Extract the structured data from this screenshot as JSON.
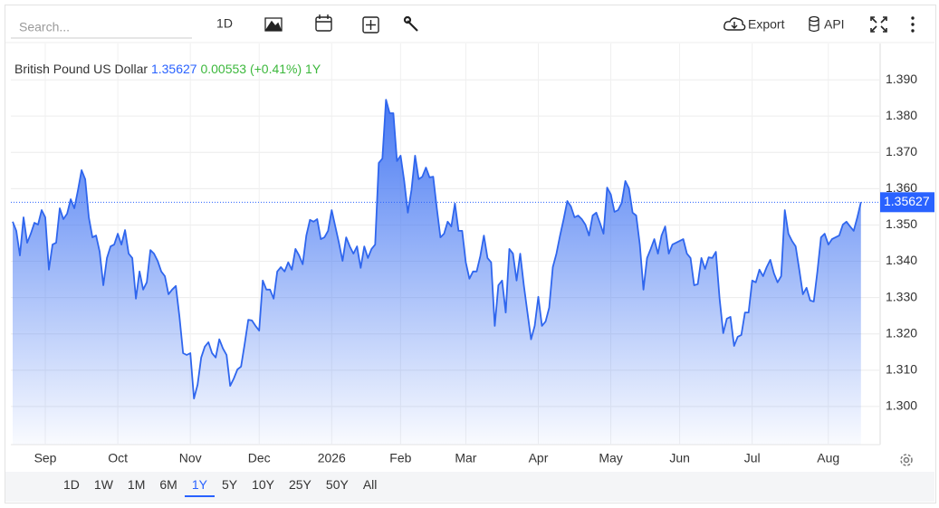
{
  "toolbar": {
    "search_placeholder": "Search...",
    "interval": "1D",
    "export": "Export",
    "api": "API"
  },
  "chart_data": {
    "type": "area",
    "title": "British Pound US Dollar",
    "last_price": 1.35627,
    "change": 0.00553,
    "change_percent": {
      "value": 0.41,
      "label": "(+0.41%)"
    },
    "period": "1Y",
    "price_color": "#2962ff",
    "change_color": "#3cb83c",
    "color": "#2f66ee",
    "values": [
      1.3509,
      1.3484,
      1.3416,
      1.3521,
      1.3451,
      1.3476,
      1.3506,
      1.3501,
      1.3541,
      1.3521,
      1.3377,
      1.3446,
      1.3451,
      1.3546,
      1.3516,
      1.3531,
      1.3571,
      1.3546,
      1.3596,
      1.3651,
      1.3626,
      1.3521,
      1.3466,
      1.3471,
      1.3426,
      1.3334,
      1.3409,
      1.3441,
      1.3446,
      1.3476,
      1.3446,
      1.3486,
      1.3421,
      1.3409,
      1.3297,
      1.3372,
      1.3322,
      1.3342,
      1.3431,
      1.3421,
      1.3401,
      1.3372,
      1.3359,
      1.3309,
      1.3322,
      1.3332,
      1.3247,
      1.3147,
      1.3142,
      1.3147,
      1.3022,
      1.306,
      1.3135,
      1.3165,
      1.3177,
      1.3147,
      1.3135,
      1.3185,
      1.316,
      1.3142,
      1.3057,
      1.3077,
      1.3102,
      1.311,
      1.3172,
      1.3239,
      1.3237,
      1.3222,
      1.3209,
      1.3347,
      1.3322,
      1.3322,
      1.3297,
      1.3372,
      1.3384,
      1.3372,
      1.3397,
      1.3377,
      1.3434,
      1.3416,
      1.3392,
      1.3471,
      1.3514,
      1.3509,
      1.3516,
      1.3461,
      1.3466,
      1.3484,
      1.3541,
      1.3496,
      1.3451,
      1.3401,
      1.3466,
      1.3441,
      1.3421,
      1.3441,
      1.3382,
      1.3441,
      1.3409,
      1.3434,
      1.3446,
      1.3671,
      1.3683,
      1.3845,
      1.3808,
      1.3808,
      1.3676,
      1.3691,
      1.3621,
      1.3534,
      1.3596,
      1.3691,
      1.3626,
      1.3633,
      1.3658,
      1.3631,
      1.3633,
      1.3546,
      1.3466,
      1.3476,
      1.3509,
      1.3496,
      1.3559,
      1.3484,
      1.3484,
      1.3397,
      1.3352,
      1.3372,
      1.3372,
      1.3414,
      1.3471,
      1.3409,
      1.3397,
      1.3222,
      1.3334,
      1.3347,
      1.3259,
      1.3434,
      1.3421,
      1.3347,
      1.3421,
      1.3334,
      1.3259,
      1.3185,
      1.3222,
      1.3302,
      1.3222,
      1.3234,
      1.3272,
      1.3384,
      1.3421,
      1.3471,
      1.3516,
      1.3566,
      1.3551,
      1.3521,
      1.3526,
      1.3516,
      1.3501,
      1.3471,
      1.3526,
      1.3534,
      1.3506,
      1.3476,
      1.3603,
      1.3584,
      1.3536,
      1.3541,
      1.3561,
      1.3621,
      1.3601,
      1.3534,
      1.3526,
      1.3446,
      1.3322,
      1.3409,
      1.3434,
      1.3461,
      1.3421,
      1.3471,
      1.3496,
      1.3421,
      1.3446,
      1.3451,
      1.3456,
      1.3461,
      1.3421,
      1.3409,
      1.3334,
      1.3337,
      1.3409,
      1.3379,
      1.3411,
      1.3409,
      1.3426,
      1.3297,
      1.3202,
      1.3242,
      1.3247,
      1.3167,
      1.3192,
      1.3197,
      1.3259,
      1.3259,
      1.3347,
      1.3342,
      1.3377,
      1.3359,
      1.3384,
      1.3404,
      1.3367,
      1.3342,
      1.3359,
      1.3541,
      1.3476,
      1.3456,
      1.3441,
      1.3377,
      1.3309,
      1.3327,
      1.3292,
      1.3289,
      1.3372,
      1.3466,
      1.3476,
      1.3446,
      1.3461,
      1.3466,
      1.3471,
      1.3501,
      1.3509,
      1.3496,
      1.3484,
      1.3521,
      1.3563
    ],
    "xlim": [
      -0.5,
      239.3
    ],
    "xticks": [
      {
        "value": 9,
        "label": "Sep"
      },
      {
        "value": 29,
        "label": "Oct"
      },
      {
        "value": 49,
        "label": "Nov"
      },
      {
        "value": 68,
        "label": "Dec"
      },
      {
        "value": 88,
        "label": "2026"
      },
      {
        "value": 107,
        "label": "Feb"
      },
      {
        "value": 125,
        "label": "Mar"
      },
      {
        "value": 145,
        "label": "Apr"
      },
      {
        "value": 165,
        "label": "May"
      },
      {
        "value": 184,
        "label": "Jun"
      },
      {
        "value": 204,
        "label": "Jul"
      },
      {
        "value": 225,
        "label": "Aug"
      }
    ],
    "ylim": [
      1.2895,
      1.4
    ],
    "yticks": [
      {
        "value": 1.3,
        "label": "1.300"
      },
      {
        "value": 1.31,
        "label": "1.310"
      },
      {
        "value": 1.32,
        "label": "1.320"
      },
      {
        "value": 1.33,
        "label": "1.330"
      },
      {
        "value": 1.34,
        "label": "1.340"
      },
      {
        "value": 1.35,
        "label": "1.350"
      },
      {
        "value": 1.36,
        "label": "1.360"
      },
      {
        "value": 1.37,
        "label": "1.370"
      },
      {
        "value": 1.38,
        "label": "1.380"
      },
      {
        "value": 1.39,
        "label": "1.390"
      }
    ],
    "grid": true
  },
  "range_buttons": {
    "options": [
      "1D",
      "1W",
      "1M",
      "6M",
      "1Y",
      "5Y",
      "10Y",
      "25Y",
      "50Y",
      "All"
    ],
    "selected": "1Y"
  }
}
